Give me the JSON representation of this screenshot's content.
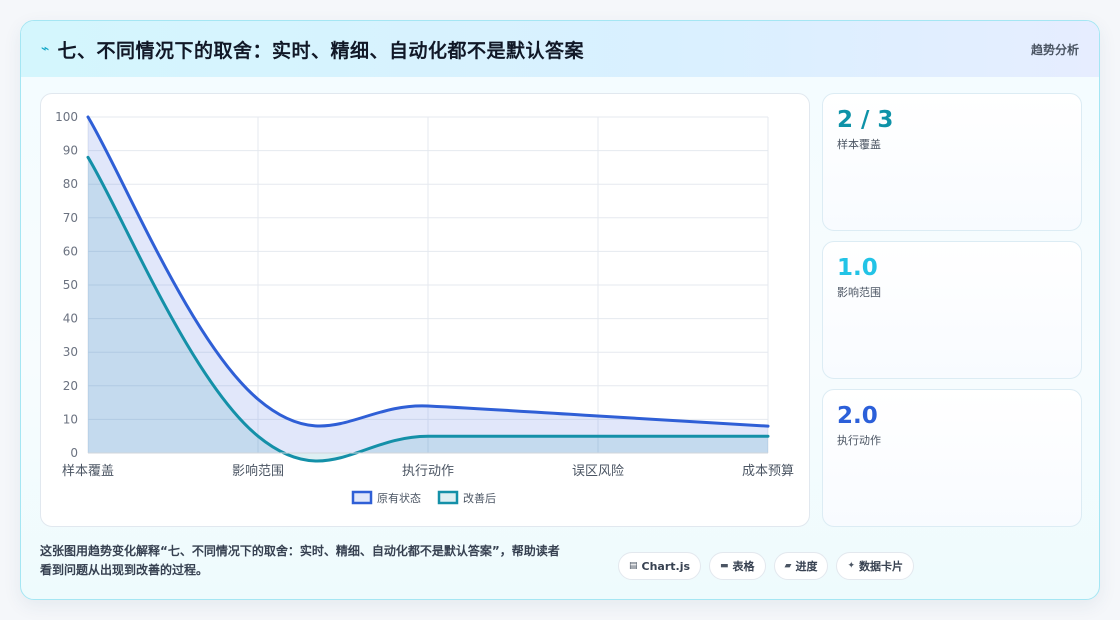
{
  "header": {
    "title": "七、不同情况下的取舍：实时、精细、自动化都不是默认答案",
    "tag": "趋势分析"
  },
  "stats": [
    {
      "value": "2 / 3",
      "label": "样本覆盖",
      "color": "#0e92a8"
    },
    {
      "value": "1.0",
      "label": "影响范围",
      "color": "#22c3e6"
    },
    {
      "value": "2.0",
      "label": "执行动作",
      "color": "#2b5fd9"
    }
  ],
  "footer": {
    "line1": "这张图用趋势变化解释“七、不同情况下的取舍：实时、精细、自动化都不是默认答案”，帮助读者",
    "line2": "看到问题从出现到改善的过程。"
  },
  "chips": [
    {
      "icon": "chart-icon",
      "glyph": "▤",
      "label": "Chart.js"
    },
    {
      "icon": "table-icon",
      "glyph": "▬",
      "label": "表格"
    },
    {
      "icon": "progress-icon",
      "glyph": "▰",
      "label": "进度"
    },
    {
      "icon": "sparkle-icon",
      "glyph": "✦",
      "label": "数据卡片"
    }
  ],
  "chart_data": {
    "type": "area",
    "categories": [
      "样本覆盖",
      "影响范围",
      "执行动作",
      "误区风险",
      "成本预算"
    ],
    "series": [
      {
        "name": "原有状态",
        "values": [
          100,
          16,
          14,
          11,
          8
        ],
        "color": "#2f5fd6"
      },
      {
        "name": "改善后",
        "values": [
          88,
          5,
          5,
          5,
          5
        ],
        "color": "#1490a8"
      }
    ],
    "ylim": [
      0,
      100
    ],
    "yticks": [
      0,
      10,
      20,
      30,
      40,
      50,
      60,
      70,
      80,
      90,
      100
    ],
    "grid": true,
    "legend": "bottom"
  }
}
